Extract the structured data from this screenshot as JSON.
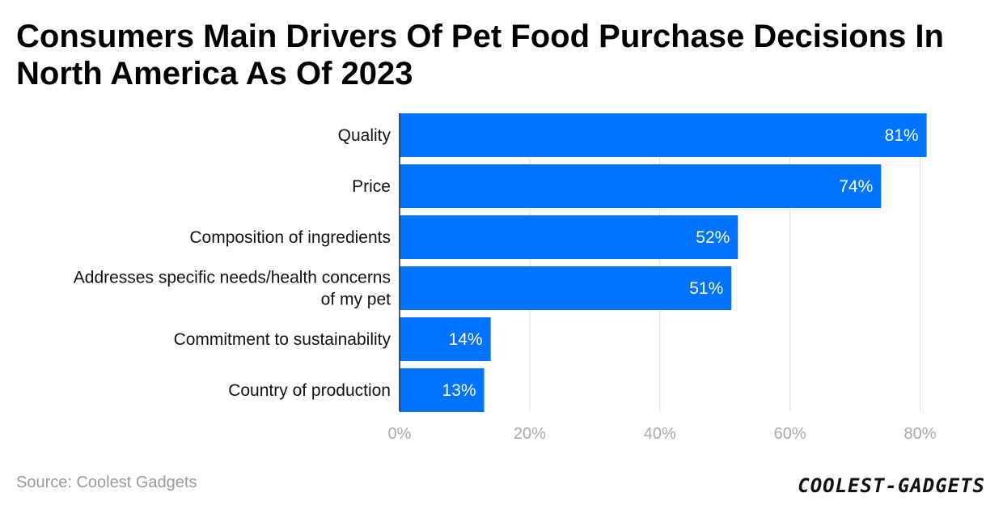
{
  "chart_data": {
    "type": "bar",
    "orientation": "horizontal",
    "title": "Consumers Main Drivers Of Pet Food Purchase Decisions In North America As Of 2023",
    "categories": [
      [
        "Quality"
      ],
      [
        "Price"
      ],
      [
        "Composition of ingredients"
      ],
      [
        "Addresses specific needs/health concerns",
        "of my pet"
      ],
      [
        "Commitment to sustainability"
      ],
      [
        "Country of production"
      ]
    ],
    "values": [
      81,
      74,
      52,
      51,
      14,
      13
    ],
    "value_labels": [
      "81%",
      "74%",
      "52%",
      "51%",
      "14%",
      "13%"
    ],
    "xticks": [
      0,
      20,
      40,
      60,
      80
    ],
    "xtick_labels": [
      "0%",
      "20%",
      "40%",
      "60%",
      "80%"
    ],
    "xlim": [
      0,
      90
    ],
    "xlabel": "",
    "ylabel": "",
    "grid": true,
    "bar_color": "#0073ff",
    "grid_color": "#dddddd",
    "tick_label_color": "#aaaaaa"
  },
  "footer": {
    "source": "Source: Coolest Gadgets",
    "brand": "COOLEST-GADGETS"
  }
}
